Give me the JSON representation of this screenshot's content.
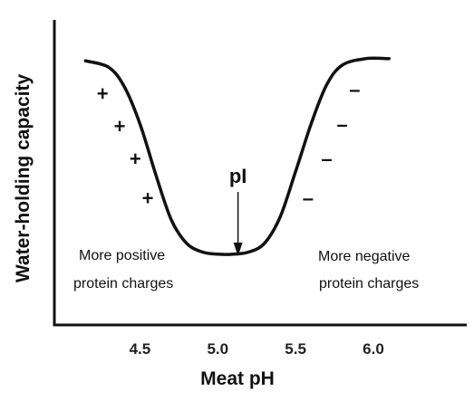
{
  "chart_data": {
    "type": "line",
    "title": "",
    "xlabel": "Meat pH",
    "ylabel": "Water-holding capacity",
    "x_ticks": [
      "4.5",
      "5.0",
      "5.5",
      "6.0"
    ],
    "x_tick_values": [
      4.5,
      5.0,
      5.5,
      6.0
    ],
    "xlim": [
      3.95,
      6.6
    ],
    "ylim": [
      0,
      1
    ],
    "grid": false,
    "legend": "none",
    "curve_color": "#111111",
    "series": [
      {
        "x": [
          4.15,
          4.3,
          4.4,
          4.5,
          4.6,
          4.7,
          4.8,
          4.9,
          5.0,
          5.1,
          5.2,
          5.3,
          5.4,
          5.5,
          5.6,
          5.7,
          5.8,
          5.95,
          6.1
        ],
        "values": [
          0.97,
          0.94,
          0.85,
          0.68,
          0.45,
          0.24,
          0.13,
          0.09,
          0.08,
          0.08,
          0.09,
          0.13,
          0.25,
          0.46,
          0.68,
          0.86,
          0.95,
          0.98,
          0.98
        ]
      }
    ],
    "annotations": {
      "pi": {
        "label": "pI",
        "x": 5.13
      },
      "left_text": [
        "More positive",
        "protein charges"
      ],
      "right_text": [
        "More negative",
        "protein charges"
      ],
      "positive_signs": [
        {
          "symbol": "+",
          "x": 4.26,
          "y": 0.82
        },
        {
          "symbol": "+",
          "x": 4.37,
          "y": 0.67
        },
        {
          "symbol": "+",
          "x": 4.47,
          "y": 0.52
        },
        {
          "symbol": "+",
          "x": 4.55,
          "y": 0.34
        }
      ],
      "negative_signs": [
        {
          "symbol": "–",
          "x": 5.58,
          "y": 0.34
        },
        {
          "symbol": "–",
          "x": 5.7,
          "y": 0.52
        },
        {
          "symbol": "–",
          "x": 5.8,
          "y": 0.68
        },
        {
          "symbol": "–",
          "x": 5.88,
          "y": 0.84
        }
      ]
    }
  }
}
